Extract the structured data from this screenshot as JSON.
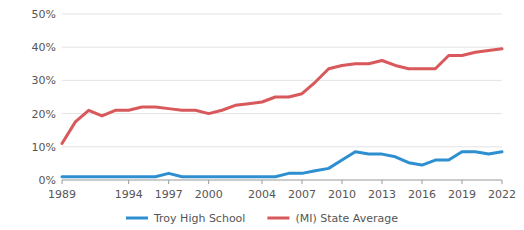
{
  "chart_data": {
    "type": "line",
    "x": [
      1989,
      1990,
      1991,
      1992,
      1993,
      1994,
      1995,
      1996,
      1997,
      1998,
      1999,
      2000,
      2001,
      2002,
      2003,
      2004,
      2005,
      2006,
      2007,
      2008,
      2009,
      2010,
      2011,
      2012,
      2013,
      2014,
      2015,
      2016,
      2017,
      2018,
      2019,
      2020,
      2021,
      2022
    ],
    "series": [
      {
        "name": "Troy High School",
        "color": "#2e8fd0",
        "values": [
          1,
          1,
          1,
          1,
          1,
          1,
          1,
          1,
          2,
          1,
          1,
          1,
          1,
          1,
          1,
          1,
          1,
          2,
          2,
          2.8,
          3.5,
          6,
          8.5,
          7.8,
          7.8,
          7,
          5.2,
          4.5,
          6,
          6,
          8.5,
          8.5,
          7.8,
          8.5
        ]
      },
      {
        "name": "(MI) State Average",
        "color": "#d9585b",
        "values": [
          11,
          17.5,
          21,
          19.3,
          21,
          21,
          22,
          22,
          21.5,
          21,
          21,
          20,
          21,
          22.5,
          23,
          23.5,
          25,
          25,
          26,
          29.5,
          33.5,
          34.5,
          35,
          35,
          36,
          34.5,
          33.5,
          33.5,
          33.5,
          37.5,
          37.5,
          38.5,
          39,
          39.5
        ]
      }
    ],
    "xlim": [
      1989,
      2022
    ],
    "xticks": [
      1989,
      1994,
      1997,
      2000,
      2004,
      2007,
      2010,
      2013,
      2016,
      2019,
      2022
    ],
    "ylim": [
      0,
      50
    ],
    "yticks": [
      {
        "value": 0,
        "label": "0%"
      },
      {
        "value": 10,
        "label": "10%"
      },
      {
        "value": 20,
        "label": "20%"
      },
      {
        "value": 30,
        "label": "30%"
      },
      {
        "value": 40,
        "label": "40%"
      },
      {
        "value": 50,
        "label": "50%"
      }
    ],
    "grid": true,
    "legend": "bottom"
  }
}
